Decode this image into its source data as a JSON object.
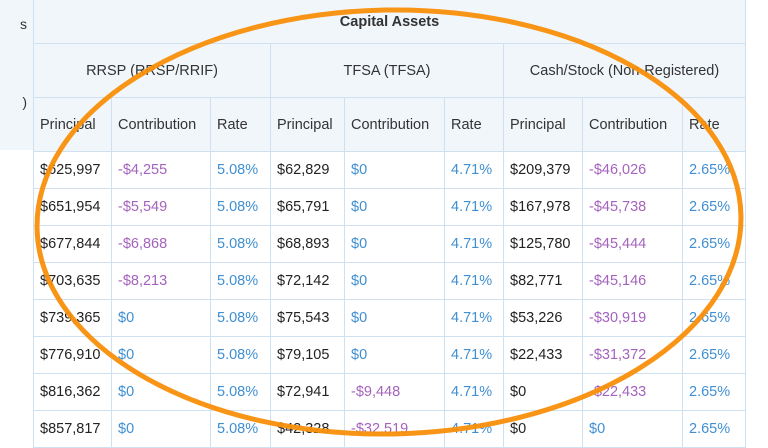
{
  "left_fragments": [
    "s",
    ")"
  ],
  "title": "Capital Assets",
  "groups": [
    "RRSP (RRSP/RRIF)",
    "TFSA (TFSA)",
    "Cash/Stock (Non-Registered)"
  ],
  "subheaders": [
    "Principal",
    "Contribution",
    "Rate"
  ],
  "rows": [
    [
      "$625,997",
      "-$4,255",
      "5.08%",
      "$62,829",
      "$0",
      "4.71%",
      "$209,379",
      "-$46,026",
      "2.65%"
    ],
    [
      "$651,954",
      "-$5,549",
      "5.08%",
      "$65,791",
      "$0",
      "4.71%",
      "$167,978",
      "-$45,738",
      "2.65%"
    ],
    [
      "$677,844",
      "-$6,868",
      "5.08%",
      "$68,893",
      "$0",
      "4.71%",
      "$125,780",
      "-$45,444",
      "2.65%"
    ],
    [
      "$703,635",
      "-$8,213",
      "5.08%",
      "$72,142",
      "$0",
      "4.71%",
      "$82,771",
      "-$45,146",
      "2.65%"
    ],
    [
      "$739,365",
      "$0",
      "5.08%",
      "$75,543",
      "$0",
      "4.71%",
      "$53,226",
      "-$30,919",
      "2.65%"
    ],
    [
      "$776,910",
      "$0",
      "5.08%",
      "$79,105",
      "$0",
      "4.71%",
      "$22,433",
      "-$31,372",
      "2.65%"
    ],
    [
      "$816,362",
      "$0",
      "5.08%",
      "$72,941",
      "-$9,448",
      "4.71%",
      "$0",
      "-$22,433",
      "2.65%"
    ],
    [
      "$857,817",
      "$0",
      "5.08%",
      "$42,328",
      "-$32,519",
      "4.71%",
      "$0",
      "$0",
      "2.65%"
    ]
  ],
  "colors": {
    "positive_contribution": "#3f8fd2",
    "negative_contribution": "#a463bd",
    "rate": "#3f8fd2",
    "annotation": "#f98f0a"
  }
}
